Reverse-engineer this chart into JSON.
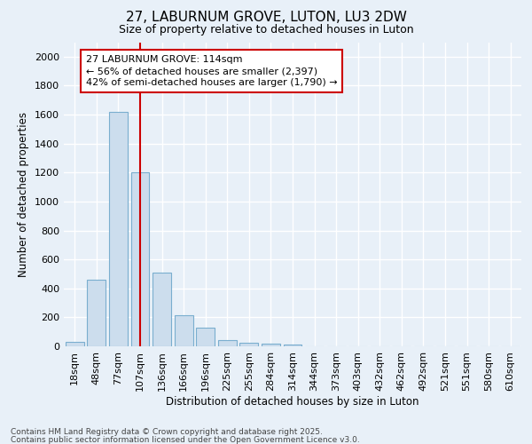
{
  "title1": "27, LABURNUM GROVE, LUTON, LU3 2DW",
  "title2": "Size of property relative to detached houses in Luton",
  "xlabel": "Distribution of detached houses by size in Luton",
  "ylabel": "Number of detached properties",
  "categories": [
    "18sqm",
    "48sqm",
    "77sqm",
    "107sqm",
    "136sqm",
    "166sqm",
    "196sqm",
    "225sqm",
    "255sqm",
    "284sqm",
    "314sqm",
    "344sqm",
    "373sqm",
    "403sqm",
    "432sqm",
    "462sqm",
    "492sqm",
    "521sqm",
    "551sqm",
    "580sqm",
    "610sqm"
  ],
  "values": [
    30,
    460,
    1620,
    1200,
    510,
    215,
    130,
    40,
    25,
    20,
    15,
    0,
    0,
    0,
    0,
    0,
    0,
    0,
    0,
    0,
    0
  ],
  "bar_color": "#ccdded",
  "bar_edge_color": "#7aaecf",
  "background_color": "#e8f0f8",
  "grid_color": "#ffffff",
  "vline_x": 3,
  "vline_color": "#cc0000",
  "annotation_text": "27 LABURNUM GROVE: 114sqm\n← 56% of detached houses are smaller (2,397)\n42% of semi-detached houses are larger (1,790) →",
  "annotation_box_facecolor": "#ffffff",
  "annotation_box_edgecolor": "#cc0000",
  "ylim": [
    0,
    2100
  ],
  "yticks": [
    0,
    200,
    400,
    600,
    800,
    1000,
    1200,
    1400,
    1600,
    1800,
    2000
  ],
  "footnote1": "Contains HM Land Registry data © Crown copyright and database right 2025.",
  "footnote2": "Contains public sector information licensed under the Open Government Licence v3.0.",
  "title1_fontsize": 11,
  "title2_fontsize": 9,
  "tick_fontsize": 8,
  "label_fontsize": 8.5,
  "annot_fontsize": 8,
  "footnote_fontsize": 6.5
}
